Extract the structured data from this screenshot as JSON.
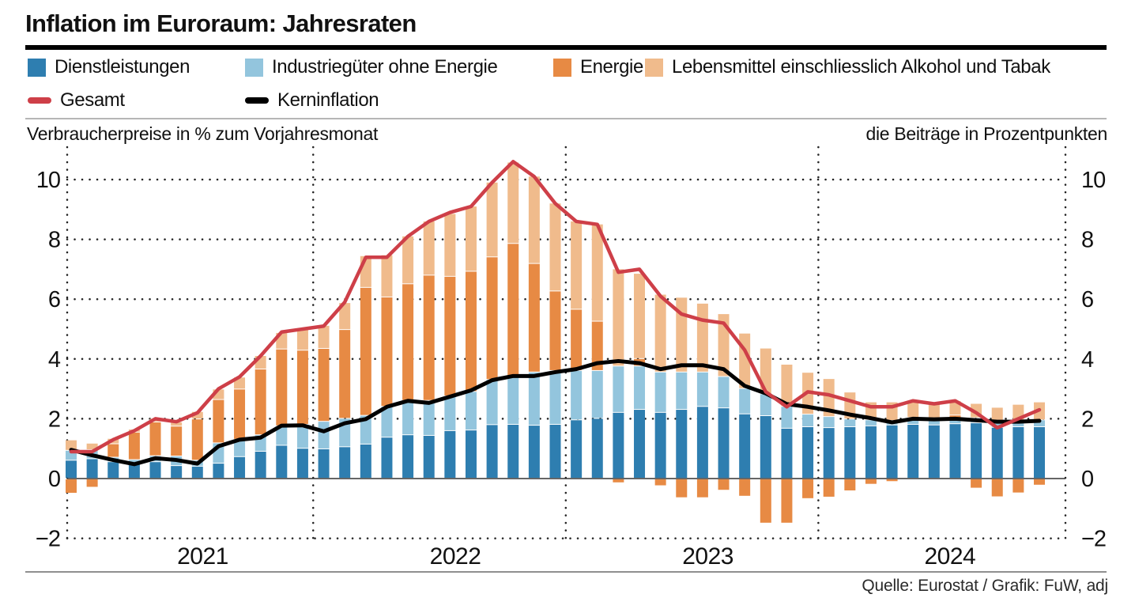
{
  "title": "Inflation im Euroraum: Jahresraten",
  "header": {
    "left_caption": "Verbraucherpreise in % zum Vorjahresmonat",
    "right_caption": "die Beiträge in Prozentpunkten"
  },
  "source": "Quelle: Eurostat / Grafik: FuW, adj",
  "colors": {
    "services": "#2E7EB0",
    "goods": "#93C5DD",
    "energy": "#E78A44",
    "food": "#F0BB8C",
    "total_line": "#CE3F48",
    "core_line": "#000000"
  },
  "legend": [
    {
      "label": "Dienstleistungen",
      "color": "#2E7EB0",
      "type": "square"
    },
    {
      "label": "Industriegüter ohne Energie",
      "color": "#93C5DD",
      "type": "square"
    },
    {
      "label": "Energie",
      "color": "#E78A44",
      "type": "square"
    },
    {
      "label": "Lebensmittel einschliesslich Alkohol und Tabak",
      "color": "#F0BB8C",
      "type": "square"
    },
    {
      "label": "Gesamt",
      "color": "#CE3F48",
      "type": "line"
    },
    {
      "label": "Kerninflation",
      "color": "#000000",
      "type": "line"
    }
  ],
  "chart_data": {
    "type": "bar",
    "subtype": "stacked-bars-with-lines",
    "grid": "dotted",
    "ylim": [
      -2,
      11.2
    ],
    "yticks": [
      10,
      8,
      6,
      4,
      2,
      0,
      -2
    ],
    "categories": [
      "2021-01",
      "2021-02",
      "2021-03",
      "2021-04",
      "2021-05",
      "2021-06",
      "2021-07",
      "2021-08",
      "2021-09",
      "2021-10",
      "2021-11",
      "2021-12",
      "2022-01",
      "2022-02",
      "2022-03",
      "2022-04",
      "2022-05",
      "2022-06",
      "2022-07",
      "2022-08",
      "2022-09",
      "2022-10",
      "2022-11",
      "2022-12",
      "2023-01",
      "2023-02",
      "2023-03",
      "2023-04",
      "2023-05",
      "2023-06",
      "2023-07",
      "2023-08",
      "2023-09",
      "2023-10",
      "2023-11",
      "2023-12",
      "2024-01",
      "2024-02",
      "2024-03",
      "2024-04",
      "2024-05",
      "2024-06",
      "2024-07",
      "2024-08",
      "2024-09",
      "2024-10",
      "2024-11"
    ],
    "years": [
      {
        "label": "2021",
        "from": 0,
        "to": 11
      },
      {
        "label": "2022",
        "from": 12,
        "to": 23
      },
      {
        "label": "2023",
        "from": 24,
        "to": 35
      },
      {
        "label": "2024",
        "from": 36,
        "to": 46
      }
    ],
    "series": [
      {
        "name": "Dienstleistungen",
        "role": "bar-segment",
        "color": "#2E7EB0",
        "values": [
          0.6,
          0.65,
          0.55,
          0.5,
          0.55,
          0.42,
          0.4,
          0.5,
          0.72,
          0.9,
          1.1,
          1.0,
          0.98,
          1.05,
          1.14,
          1.37,
          1.45,
          1.43,
          1.59,
          1.61,
          1.79,
          1.8,
          1.77,
          1.8,
          1.95,
          2.0,
          2.2,
          2.3,
          2.2,
          2.3,
          2.4,
          2.35,
          2.15,
          2.09,
          1.67,
          1.72,
          1.69,
          1.72,
          1.75,
          1.78,
          1.8,
          1.78,
          1.82,
          1.85,
          1.7,
          1.72,
          1.72
        ]
      },
      {
        "name": "Industriegüter ohne Energie",
        "role": "bar-segment",
        "color": "#93C5DD",
        "values": [
          0.33,
          0.3,
          0.15,
          0.12,
          0.2,
          0.32,
          0.2,
          0.68,
          0.58,
          0.55,
          0.65,
          0.8,
          0.92,
          0.95,
          0.96,
          1.03,
          1.15,
          1.17,
          1.16,
          1.29,
          1.51,
          1.6,
          1.78,
          1.8,
          1.65,
          1.6,
          1.55,
          1.45,
          1.35,
          1.25,
          1.15,
          1.05,
          0.85,
          0.73,
          0.73,
          0.42,
          0.37,
          0.26,
          0.2,
          0.15,
          0.17,
          0.16,
          0.15,
          0.17,
          0.17,
          0.18,
          0.23
        ]
      },
      {
        "name": "Energie",
        "role": "bar-segment",
        "color": "#E78A44",
        "values": [
          -0.45,
          -0.25,
          0.45,
          0.92,
          1.13,
          1.0,
          1.38,
          1.45,
          1.68,
          2.2,
          2.57,
          2.48,
          2.44,
          2.97,
          4.28,
          3.66,
          3.9,
          4.19,
          4.0,
          4.02,
          4.1,
          4.45,
          3.63,
          2.66,
          2.05,
          1.65,
          -0.1,
          0.25,
          -0.2,
          -0.6,
          -0.6,
          -0.35,
          -0.55,
          -1.45,
          -1.45,
          -0.63,
          -0.58,
          -0.37,
          -0.15,
          -0.06,
          0.06,
          0.04,
          0.14,
          -0.28,
          -0.57,
          -0.44,
          -0.18
        ]
      },
      {
        "name": "Lebensmittel einschliesslich Alkohol und Tabak",
        "role": "bar-segment",
        "color": "#F0BB8C",
        "values": [
          0.35,
          0.22,
          0.18,
          0.1,
          0.12,
          0.14,
          0.25,
          0.35,
          0.4,
          0.45,
          0.55,
          0.72,
          0.77,
          0.9,
          1.06,
          1.41,
          1.6,
          1.81,
          2.1,
          2.18,
          2.5,
          2.72,
          2.92,
          2.94,
          2.95,
          3.25,
          3.25,
          2.85,
          2.6,
          2.5,
          2.3,
          2.1,
          1.85,
          1.53,
          1.41,
          1.4,
          1.27,
          0.9,
          0.6,
          0.62,
          0.55,
          0.53,
          0.48,
          0.48,
          0.5,
          0.57,
          0.6
        ]
      },
      {
        "name": "Gesamt",
        "role": "line",
        "color": "#CE3F48",
        "values": [
          0.9,
          0.9,
          1.3,
          1.6,
          2.0,
          1.9,
          2.2,
          3.0,
          3.4,
          4.1,
          4.9,
          5.0,
          5.1,
          5.9,
          7.4,
          7.4,
          8.1,
          8.6,
          8.9,
          9.1,
          9.9,
          10.6,
          10.1,
          9.2,
          8.6,
          8.5,
          6.9,
          7.0,
          6.1,
          5.5,
          5.3,
          5.2,
          4.3,
          2.9,
          2.4,
          2.9,
          2.8,
          2.6,
          2.4,
          2.4,
          2.6,
          2.5,
          2.6,
          2.2,
          1.7,
          2.0,
          2.3
        ]
      },
      {
        "name": "Kerninflation",
        "role": "line",
        "color": "#000000",
        "values": [
          0.96,
          0.78,
          0.62,
          0.48,
          0.68,
          0.62,
          0.5,
          1.08,
          1.3,
          1.37,
          1.77,
          1.78,
          1.58,
          1.85,
          1.99,
          2.4,
          2.6,
          2.53,
          2.74,
          2.95,
          3.29,
          3.43,
          3.43,
          3.56,
          3.66,
          3.86,
          3.93,
          3.86,
          3.66,
          3.79,
          3.79,
          3.66,
          3.1,
          2.85,
          2.49,
          2.4,
          2.28,
          2.14,
          2.02,
          1.88,
          2.0,
          1.98,
          2.0,
          1.95,
          1.9,
          1.9,
          1.93
        ]
      }
    ],
    "title": "Inflation im Euroraum: Jahresraten",
    "xlabel": "",
    "ylabel": "Verbraucherpreise in % zum Vorjahresmonat / die Beiträge in Prozentpunkten"
  }
}
